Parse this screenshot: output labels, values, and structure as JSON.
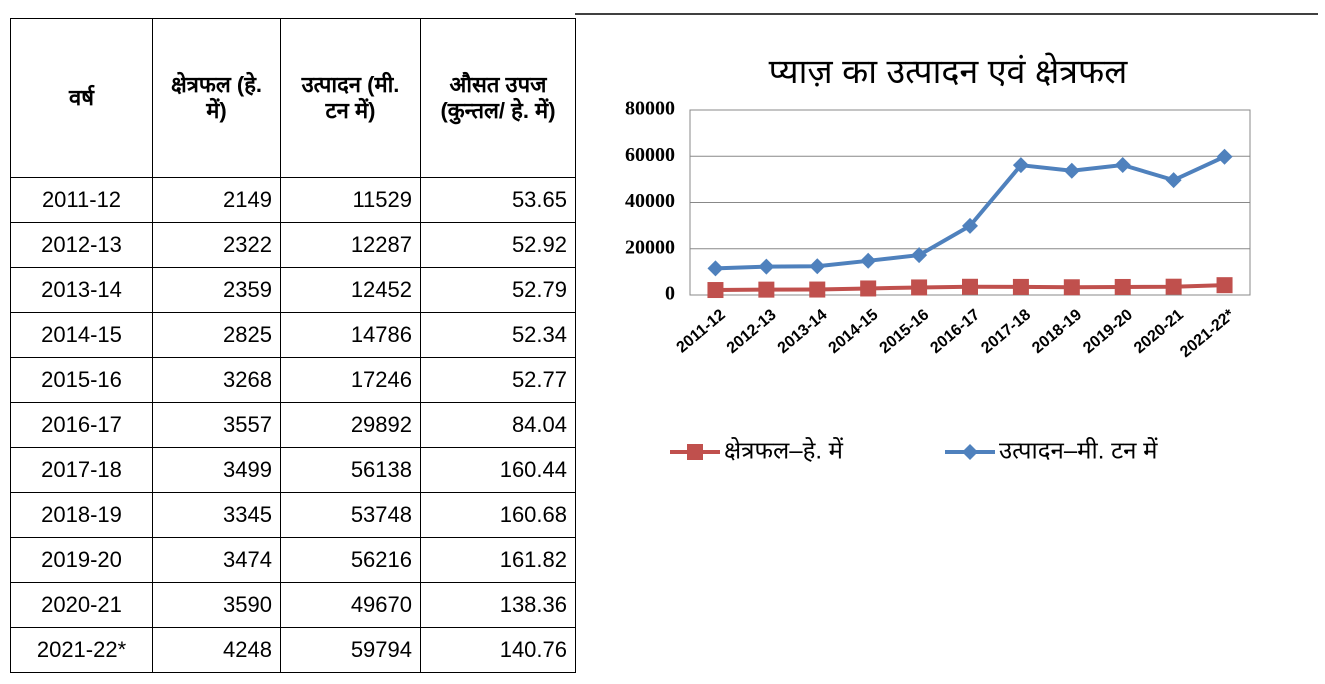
{
  "table": {
    "header": [
      "वर्ष",
      "क्षेत्रफल (हे. में)",
      "उत्पादन (मी. टन में)",
      "औसत उपज (कुन्तल/ हे. में)"
    ],
    "rows": [
      [
        "2011-12",
        2149,
        11529,
        53.65
      ],
      [
        "2012-13",
        2322,
        12287,
        52.92
      ],
      [
        "2013-14",
        2359,
        12452,
        52.79
      ],
      [
        "2014-15",
        2825,
        14786,
        52.34
      ],
      [
        "2015-16",
        3268,
        17246,
        52.77
      ],
      [
        "2016-17",
        3557,
        29892,
        84.04
      ],
      [
        "2017-18",
        3499,
        56138,
        160.44
      ],
      [
        "2018-19",
        3345,
        53748,
        160.68
      ],
      [
        "2019-20",
        3474,
        56216,
        161.82
      ],
      [
        "2020-21",
        3590,
        49670,
        138.36
      ],
      [
        "2021-22*",
        4248,
        59794,
        140.76
      ]
    ]
  },
  "chart_data": {
    "type": "line",
    "title": "प्याज़ का उत्पादन एवं क्षेत्रफल",
    "categories": [
      "2011-12",
      "2012-13",
      "2013-14",
      "2014-15",
      "2015-16",
      "2016-17",
      "2017-18",
      "2018-19",
      "2019-20",
      "2020-21",
      "2021-22*"
    ],
    "series": [
      {
        "name": "क्षेत्रफल–हे. में",
        "color": "#c0504d",
        "marker": "square",
        "values": [
          2149,
          2322,
          2359,
          2825,
          3268,
          3557,
          3499,
          3345,
          3474,
          3590,
          4248
        ]
      },
      {
        "name": "उत्पादन–मी. टन में",
        "color": "#4f81bd",
        "marker": "diamond",
        "values": [
          11529,
          12287,
          12452,
          14786,
          17246,
          29892,
          56138,
          53748,
          56216,
          49670,
          59794
        ]
      }
    ],
    "ylim": [
      0,
      80000
    ],
    "yticks": [
      0,
      20000,
      40000,
      60000,
      80000
    ],
    "grid": true,
    "legend": "bottom"
  }
}
